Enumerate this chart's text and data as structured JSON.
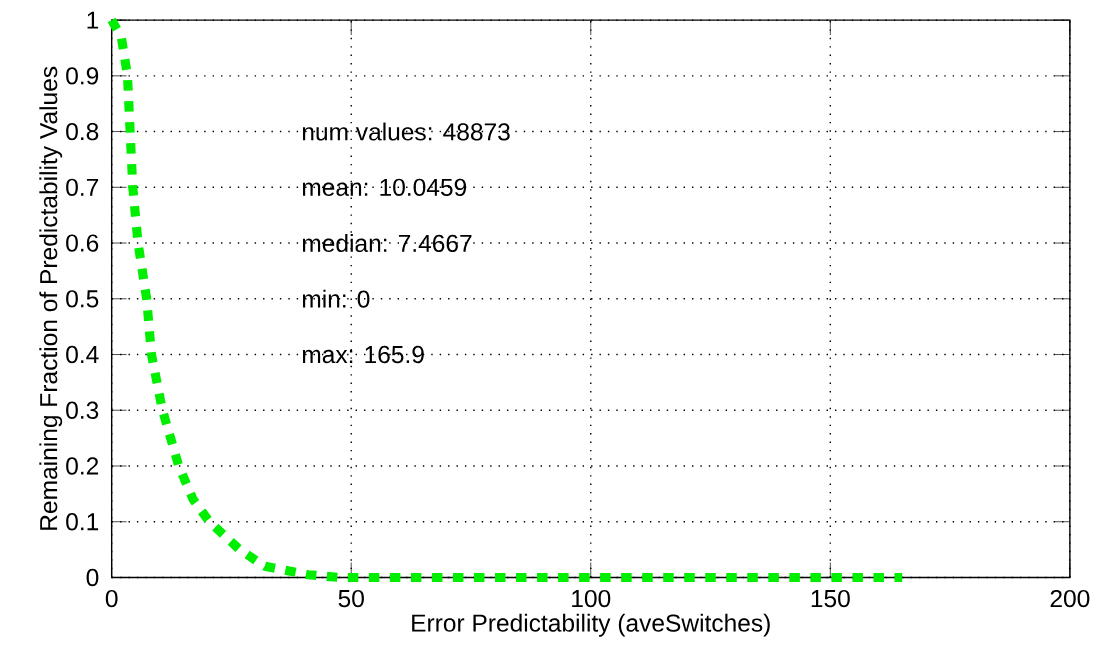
{
  "chart_data": {
    "type": "line",
    "xlabel": "Error Predictability (aveSwitches)",
    "ylabel": "Remaining Fraction of Predictability Values",
    "series": [
      {
        "color": "#00ee00",
        "x": [
          0,
          2,
          3.3,
          4.4,
          5.5,
          7.3,
          8.3,
          10.6,
          14,
          17,
          20.4,
          26.7,
          32,
          41,
          47.5,
          60,
          80,
          100,
          120,
          140,
          165
        ],
        "values": [
          1,
          0.97,
          0.9,
          0.7,
          0.6,
          0.5,
          0.4,
          0.3,
          0.2,
          0.14,
          0.1,
          0.05,
          0.02,
          0.005,
          0,
          0,
          0,
          0,
          0,
          0,
          0
        ]
      }
    ],
    "xlim": [
      0,
      200
    ],
    "ylim": [
      0,
      1
    ],
    "xticks": [
      0,
      50,
      100,
      150,
      200
    ],
    "yticks": [
      0,
      0.1,
      0.2,
      0.3,
      0.4,
      0.5,
      0.6,
      0.7,
      0.8,
      0.9,
      1
    ],
    "grid": true,
    "line_style": "dashed",
    "marker": "none",
    "annotations": [
      "num values: 48873",
      "mean: 10.0459",
      "median: 7.4667",
      "min: 0",
      "max: 165.9"
    ]
  }
}
